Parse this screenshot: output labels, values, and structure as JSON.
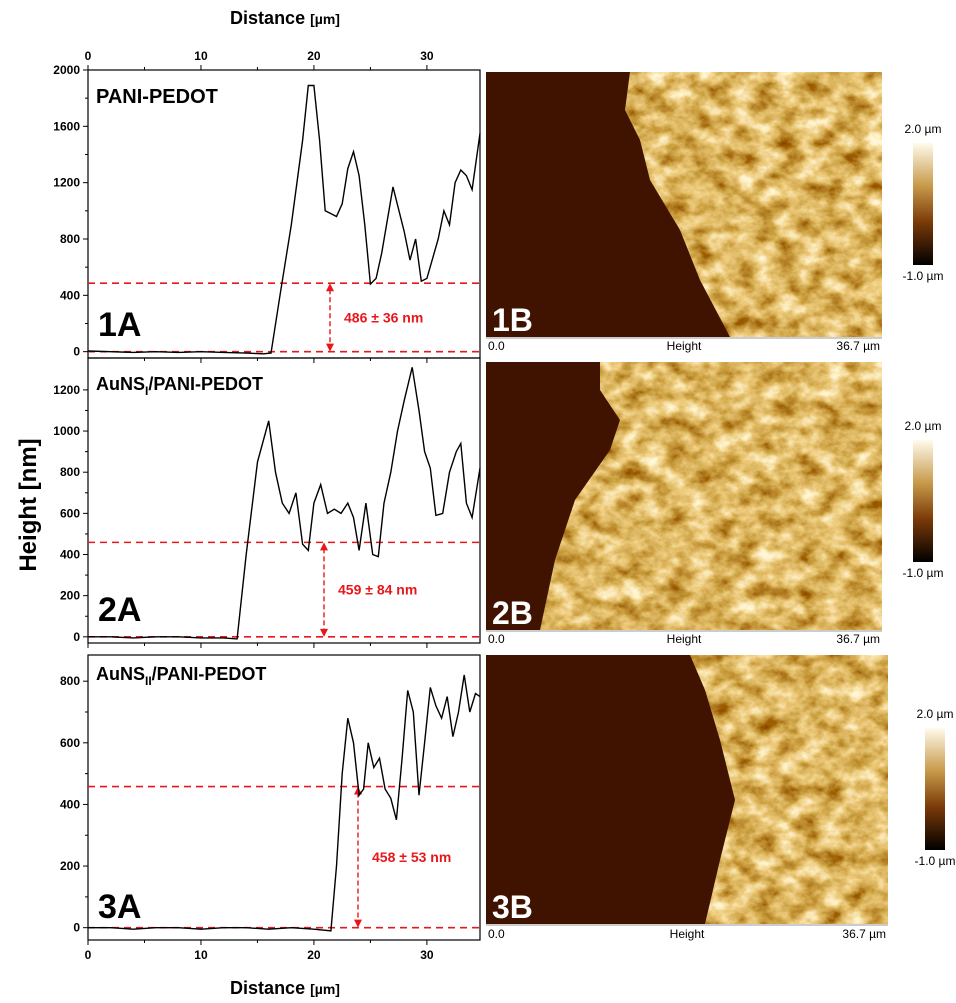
{
  "x_axis_title": "Distance",
  "x_axis_unit": "[µm]",
  "y_axis_title": "Height [nm]",
  "chart_data": [
    {
      "type": "line",
      "title": "PANI-PEDOT",
      "panel_label": "1A",
      "color": "#000000",
      "x": [
        0,
        2,
        4,
        6,
        8,
        10,
        12,
        14,
        15.5,
        16.2,
        17,
        18,
        19,
        19.5,
        20,
        20.5,
        21,
        21.5,
        22,
        22.5,
        23,
        23.5,
        24,
        24.5,
        25,
        25.5,
        26,
        27,
        28,
        28.5,
        29,
        29.5,
        30,
        31,
        31.5,
        32,
        32.5,
        33,
        33.5,
        34,
        34.7
      ],
      "values": [
        5,
        0,
        -5,
        0,
        -5,
        0,
        -5,
        -10,
        -15,
        -10,
        400,
        900,
        1500,
        1890,
        1890,
        1500,
        1000,
        980,
        960,
        1050,
        1300,
        1420,
        1250,
        900,
        480,
        520,
        700,
        1170,
        850,
        650,
        800,
        500,
        520,
        800,
        1000,
        900,
        1200,
        1290,
        1250,
        1150,
        1550
      ],
      "xlim": [
        0,
        34.7
      ],
      "xticks": [
        0,
        10,
        20,
        30
      ],
      "ylim": [
        -45,
        2000
      ],
      "yticks": [
        0,
        400,
        800,
        1200,
        1600,
        2000
      ],
      "reference_lines": [
        {
          "value": 486,
          "label": "486 ± 36 nm"
        },
        {
          "value": 0
        }
      ],
      "reference_color": "#e8171b"
    },
    {
      "type": "line",
      "title": "AuNS",
      "title_sub": "I",
      "title_rest": "/PANI-PEDOT",
      "panel_label": "2A",
      "color": "#000000",
      "x": [
        0,
        2,
        4,
        6,
        8,
        10,
        12,
        13.2,
        14,
        15,
        16,
        16.6,
        17.2,
        17.8,
        18.4,
        19,
        19.5,
        20,
        20.6,
        21.2,
        21.8,
        22.4,
        23,
        23.5,
        24,
        24.6,
        25.2,
        25.7,
        26.2,
        26.8,
        27.4,
        28,
        28.7,
        29.3,
        29.8,
        30.3,
        30.8,
        31.4,
        32,
        32.6,
        33,
        33.5,
        34,
        34.7
      ],
      "values": [
        0,
        0,
        -5,
        0,
        0,
        -5,
        -5,
        -10,
        400,
        850,
        1050,
        800,
        650,
        600,
        700,
        450,
        420,
        650,
        740,
        600,
        620,
        600,
        650,
        580,
        420,
        650,
        400,
        390,
        650,
        800,
        1000,
        1150,
        1310,
        1100,
        900,
        820,
        590,
        600,
        800,
        900,
        940,
        650,
        580,
        820
      ],
      "xlim": [
        0,
        34.7
      ],
      "xticks": [
        0,
        10,
        20,
        30
      ],
      "ylim": [
        -30,
        1355
      ],
      "yticks": [
        0,
        200,
        400,
        600,
        800,
        1000,
        1200
      ],
      "reference_lines": [
        {
          "value": 459,
          "label": "459 ± 84 nm"
        },
        {
          "value": 0
        }
      ],
      "reference_color": "#e8171b"
    },
    {
      "type": "line",
      "title": "AuNS",
      "title_sub": "II",
      "title_rest": "/PANI-PEDOT",
      "panel_label": "3A",
      "color": "#000000",
      "x": [
        0,
        2,
        4,
        6,
        8,
        10,
        12,
        14,
        16,
        18,
        20,
        21.5,
        22,
        22.5,
        23,
        23.5,
        24,
        24.4,
        24.8,
        25.3,
        25.8,
        26.3,
        26.8,
        27.3,
        27.8,
        28.3,
        28.8,
        29.3,
        29.8,
        30.3,
        30.8,
        31.3,
        31.8,
        32.3,
        32.8,
        33.3,
        33.8,
        34.3,
        34.7
      ],
      "values": [
        0,
        0,
        -5,
        0,
        0,
        -5,
        0,
        0,
        -5,
        0,
        -5,
        -10,
        200,
        500,
        680,
        600,
        430,
        450,
        600,
        520,
        550,
        450,
        420,
        350,
        550,
        770,
        700,
        430,
        600,
        780,
        720,
        680,
        750,
        620,
        700,
        820,
        700,
        760,
        750
      ],
      "xlim": [
        0,
        34.7
      ],
      "xticks": [
        0,
        10,
        20,
        30
      ],
      "ylim": [
        -40,
        885
      ],
      "yticks": [
        0,
        200,
        400,
        600,
        800
      ],
      "reference_lines": [
        {
          "value": 458,
          "label": "458 ± 53 nm"
        },
        {
          "value": 0
        }
      ],
      "reference_color": "#e8171b"
    }
  ],
  "images": [
    {
      "label": "1B",
      "x_start": "0.0",
      "channel": "Height",
      "x_end": "36.7 µm",
      "scale_max": "2.0 µm",
      "scale_min": "-1.0 µm"
    },
    {
      "label": "2B",
      "x_start": "0.0",
      "channel": "Height",
      "x_end": "36.7 µm",
      "scale_max": "2.0 µm",
      "scale_min": "-1.0 µm"
    },
    {
      "label": "3B",
      "x_start": "0.0",
      "channel": "Height",
      "x_end": "36.7 µm",
      "scale_max": "2.0 µm",
      "scale_min": "-1.0 µm"
    }
  ]
}
